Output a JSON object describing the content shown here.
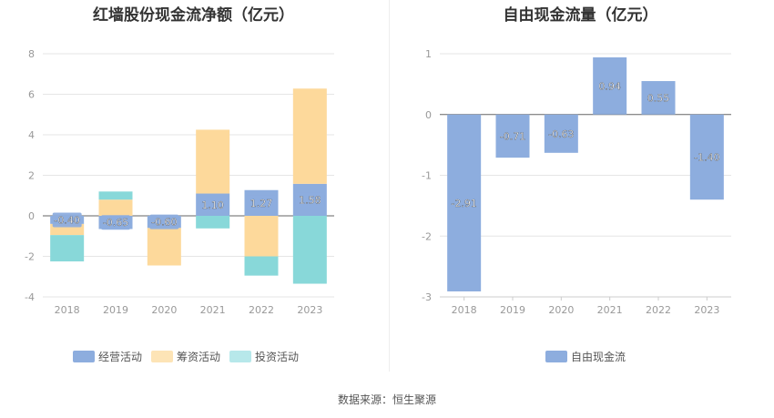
{
  "source_label": "数据来源：恒生聚源",
  "colors": {
    "operating": "#8dadde",
    "financing": "#fdd99b",
    "investing": "#88d8d9",
    "investing_legend": "#b7e8ea",
    "fcf": "#8dadde"
  },
  "chart_data": [
    {
      "type": "bar",
      "stacked": true,
      "title": "红墙股份现金流净额（亿元）",
      "categories": [
        "2018",
        "2019",
        "2020",
        "2021",
        "2022",
        "2023"
      ],
      "ylim": [
        -4,
        8
      ],
      "yticks": [
        "-4",
        "-2",
        "0",
        "2",
        "4",
        "6",
        "8"
      ],
      "grid": true,
      "legend_position": "bottom",
      "series": [
        {
          "name": "经营活动",
          "values": [
            -0.4,
            -0.65,
            -0.6,
            1.1,
            1.27,
            1.58
          ],
          "labels": [
            "-0.40",
            "-0.65",
            "-0.60",
            "1.10",
            "1.27",
            "1.58"
          ]
        },
        {
          "name": "筹资活动",
          "values": [
            -0.55,
            0.8,
            -1.85,
            3.15,
            -2.0,
            4.7
          ]
        },
        {
          "name": "投资活动",
          "values": [
            -1.3,
            0.4,
            0.0,
            -0.62,
            -0.95,
            -3.35
          ]
        }
      ]
    },
    {
      "type": "bar",
      "title": "自由现金流量（亿元）",
      "categories": [
        "2018",
        "2019",
        "2020",
        "2021",
        "2022",
        "2023"
      ],
      "ylim": [
        -3,
        1
      ],
      "yticks": [
        "-3",
        "-2",
        "-1",
        "0",
        "1"
      ],
      "grid": true,
      "legend_position": "bottom",
      "series": [
        {
          "name": "自由现金流",
          "values": [
            -2.91,
            -0.71,
            -0.63,
            0.94,
            0.55,
            -1.4
          ],
          "labels": [
            "-2.91",
            "-0.71",
            "-0.63",
            "0.94",
            "0.55",
            "-1.40"
          ]
        }
      ]
    }
  ]
}
